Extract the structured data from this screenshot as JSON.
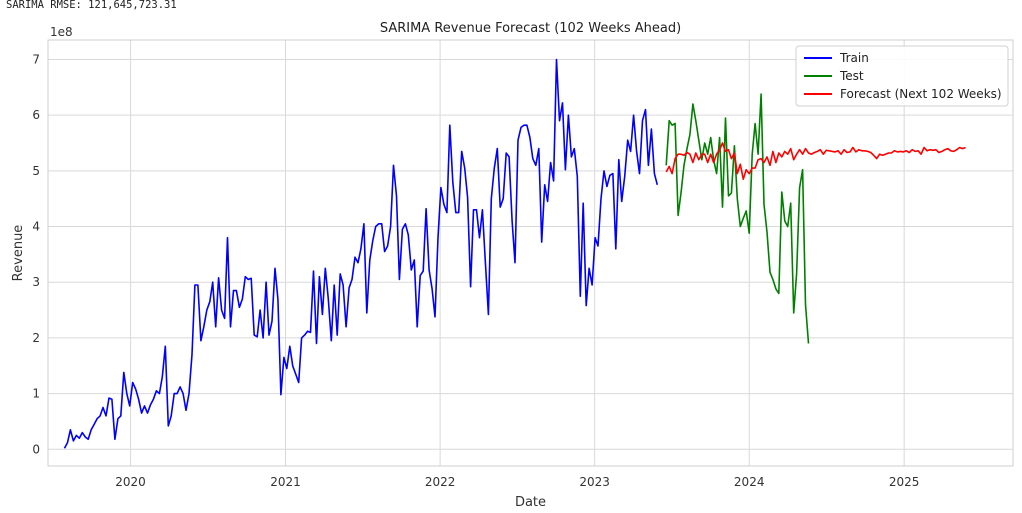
{
  "header_text": "SARIMA RMSE: 121,645,723.31",
  "chart_data": {
    "type": "line",
    "title": "SARIMA Revenue Forecast (102 Weeks Ahead)",
    "xlabel": "Date",
    "ylabel": "Revenue",
    "y_offset_label": "1e8",
    "ylim": [
      -0.3,
      7.35
    ],
    "xlim": [
      "2019-06-20",
      "2025-09-15"
    ],
    "y_ticks": [
      0,
      1,
      2,
      3,
      4,
      5,
      6,
      7
    ],
    "y_tick_labels": [
      "0",
      "1",
      "2",
      "3",
      "4",
      "5",
      "6",
      "7"
    ],
    "x_ticks": [
      "2020-01-01",
      "2021-01-01",
      "2022-01-01",
      "2023-01-01",
      "2024-01-01",
      "2025-01-01"
    ],
    "x_tick_labels": [
      "2020",
      "2021",
      "2022",
      "2023",
      "2024",
      "2025"
    ],
    "grid": true,
    "legend_position": "top-right",
    "colors": {
      "train": "#0000ff",
      "test": "#008000",
      "forecast": "#ff0000",
      "grid": "#d9d9d9",
      "axis": "#cfcfcf"
    },
    "series": [
      {
        "name": "Train",
        "color": "#0000ff",
        "start": "2019-07-29",
        "values": [
          0.02,
          0.12,
          0.35,
          0.15,
          0.25,
          0.2,
          0.3,
          0.22,
          0.18,
          0.35,
          0.45,
          0.55,
          0.6,
          0.75,
          0.6,
          0.92,
          0.9,
          0.18,
          0.55,
          0.6,
          1.38,
          1.0,
          0.78,
          1.2,
          1.08,
          0.9,
          0.65,
          0.78,
          0.65,
          0.8,
          0.9,
          1.05,
          1.0,
          1.3,
          1.85,
          0.42,
          0.6,
          1.0,
          1.0,
          1.12,
          1.0,
          0.7,
          1.0,
          1.7,
          2.95,
          2.95,
          1.95,
          2.2,
          2.5,
          2.65,
          3.0,
          2.2,
          3.08,
          2.5,
          2.35,
          3.8,
          2.2,
          2.85,
          2.85,
          2.55,
          2.7,
          3.1,
          3.05,
          3.07,
          2.05,
          2.02,
          2.5,
          2.0,
          3.0,
          2.05,
          2.3,
          3.25,
          2.7,
          0.98,
          1.65,
          1.45,
          1.85,
          1.5,
          1.35,
          1.2,
          2.0,
          2.05,
          2.12,
          2.1,
          3.2,
          1.9,
          3.1,
          2.42,
          3.25,
          2.7,
          1.95,
          2.95,
          2.05,
          3.15,
          2.95,
          2.2,
          2.9,
          3.05,
          3.45,
          3.35,
          3.6,
          4.05,
          2.45,
          3.4,
          3.75,
          4.0,
          4.05,
          4.05,
          3.55,
          3.65,
          4.0,
          5.1,
          4.55,
          3.05,
          3.95,
          4.05,
          3.85,
          3.22,
          3.4,
          2.2,
          3.12,
          3.2,
          4.32,
          3.22,
          2.88,
          2.38,
          3.8,
          4.7,
          4.4,
          4.25,
          5.82,
          4.8,
          4.25,
          4.25,
          5.35,
          5.05,
          4.52,
          2.92,
          4.3,
          4.3,
          3.8,
          4.3,
          3.35,
          2.42,
          4.5,
          5.05,
          5.4,
          4.35,
          4.5,
          5.32,
          5.25,
          4.1,
          3.35,
          5.55,
          5.78,
          5.82,
          5.82,
          5.6,
          5.22,
          5.1,
          5.4,
          3.72,
          4.75,
          4.45,
          5.15,
          4.82,
          7.0,
          5.9,
          6.22,
          5.02,
          6.0,
          5.25,
          5.4,
          4.9,
          2.75,
          4.42,
          2.58,
          3.25,
          2.95,
          3.8,
          3.65,
          4.5,
          5.0,
          4.72,
          4.92,
          4.95,
          3.6,
          5.2,
          4.45,
          4.9,
          5.55,
          5.35,
          6.0,
          5.35,
          4.95,
          5.9,
          6.1,
          5.1,
          5.75,
          4.95,
          4.75
        ]
      },
      {
        "name": "Test",
        "color": "#008000",
        "start": "2023-06-19",
        "values": [
          5.1,
          5.9,
          5.82,
          5.85,
          4.2,
          4.6,
          5.1,
          5.4,
          5.65,
          6.2,
          5.9,
          5.55,
          5.2,
          5.5,
          5.3,
          5.6,
          5.2,
          4.95,
          5.6,
          4.35,
          5.95,
          4.55,
          4.6,
          5.45,
          4.5,
          4.0,
          4.15,
          4.28,
          3.88,
          5.3,
          5.85,
          5.3,
          6.38,
          4.4,
          3.9,
          3.18,
          3.05,
          2.88,
          2.8,
          4.62,
          4.1,
          4.0,
          4.42,
          2.45,
          3.15,
          4.7,
          5.02,
          2.6,
          1.9
        ]
      },
      {
        "name": "Forecast (Next 102 Weeks)",
        "color": "#ff0000",
        "start": "2023-06-19",
        "values": [
          4.98,
          5.08,
          4.95,
          5.22,
          5.3,
          5.3,
          5.28,
          5.33,
          5.3,
          5.15,
          5.32,
          5.2,
          5.3,
          5.3,
          5.15,
          5.3,
          5.15,
          5.3,
          5.38,
          5.5,
          5.35,
          5.38,
          5.22,
          5.32,
          4.95,
          5.12,
          4.85,
          5.02,
          4.95,
          5.05,
          5.05,
          5.2,
          5.22,
          5.15,
          5.25,
          5.1,
          5.35,
          5.15,
          5.32,
          5.25,
          5.35,
          5.3,
          5.4,
          5.2,
          5.3,
          5.38,
          5.3,
          5.4,
          5.32,
          5.3,
          5.33,
          5.35,
          5.38,
          5.3,
          5.37,
          5.36,
          5.35,
          5.34,
          5.36,
          5.3,
          5.38,
          5.33,
          5.34,
          5.42,
          5.34,
          5.38,
          5.36,
          5.36,
          5.35,
          5.33,
          5.28,
          5.22,
          5.3,
          5.28,
          5.3,
          5.32,
          5.32,
          5.36,
          5.34,
          5.35,
          5.34,
          5.36,
          5.33,
          5.38,
          5.35,
          5.36,
          5.3,
          5.42,
          5.36,
          5.38,
          5.37,
          5.38,
          5.33,
          5.35,
          5.38,
          5.4,
          5.36,
          5.35,
          5.38,
          5.42,
          5.4,
          5.42
        ]
      }
    ]
  }
}
